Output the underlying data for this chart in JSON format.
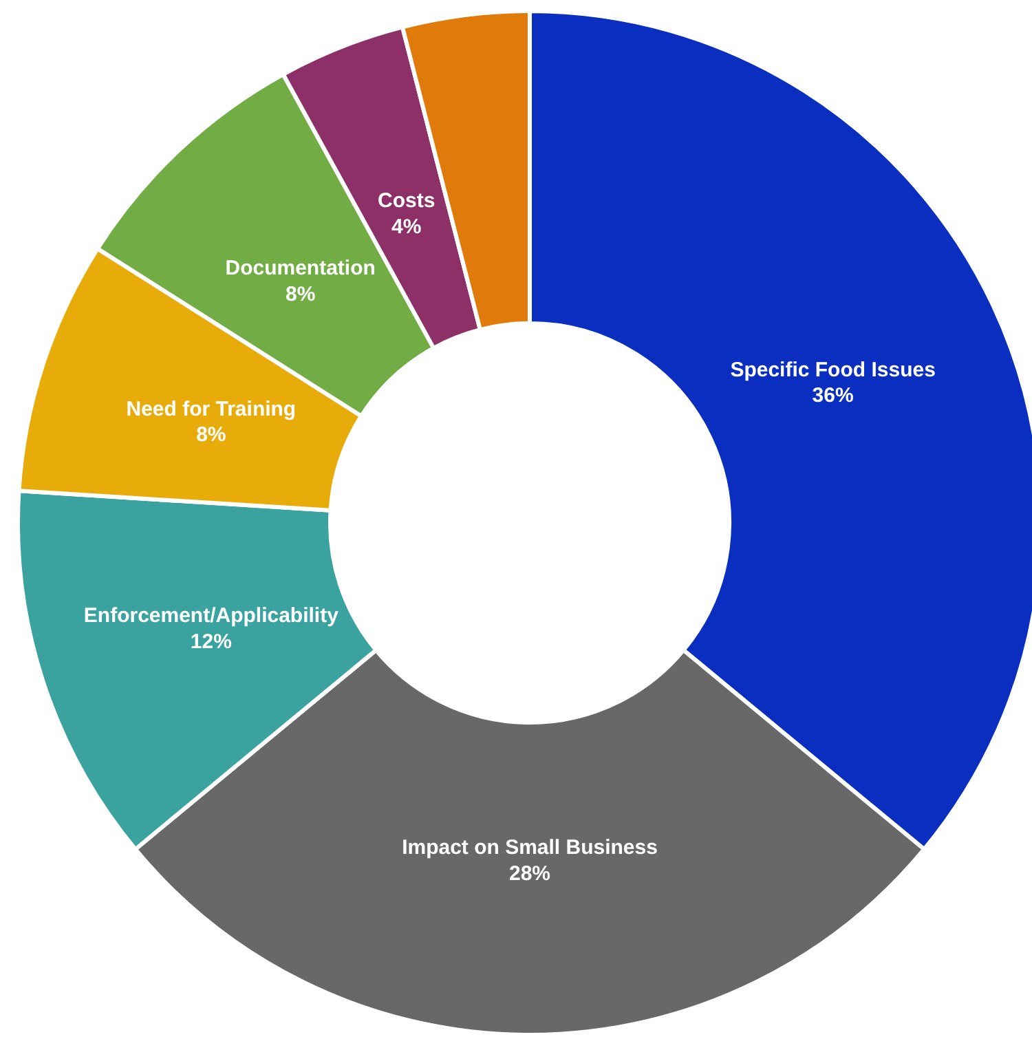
{
  "chart_data": {
    "type": "donut",
    "categories": [
      "Specific Food Issues",
      "Impact on Small Business",
      "Enforcement/Applicability",
      "Need for Training",
      "Documentation",
      "Costs",
      null
    ],
    "values": [
      36,
      28,
      12,
      8,
      8,
      4,
      4
    ],
    "colors": [
      "#0a2fc0",
      "#686868",
      "#3aa3a0",
      "#e8ac0a",
      "#72ac45",
      "#8e3068",
      "#e07a0b"
    ],
    "value_labels": [
      "36%",
      "28%",
      "12%",
      "8%",
      "8%",
      "4%",
      null
    ]
  }
}
